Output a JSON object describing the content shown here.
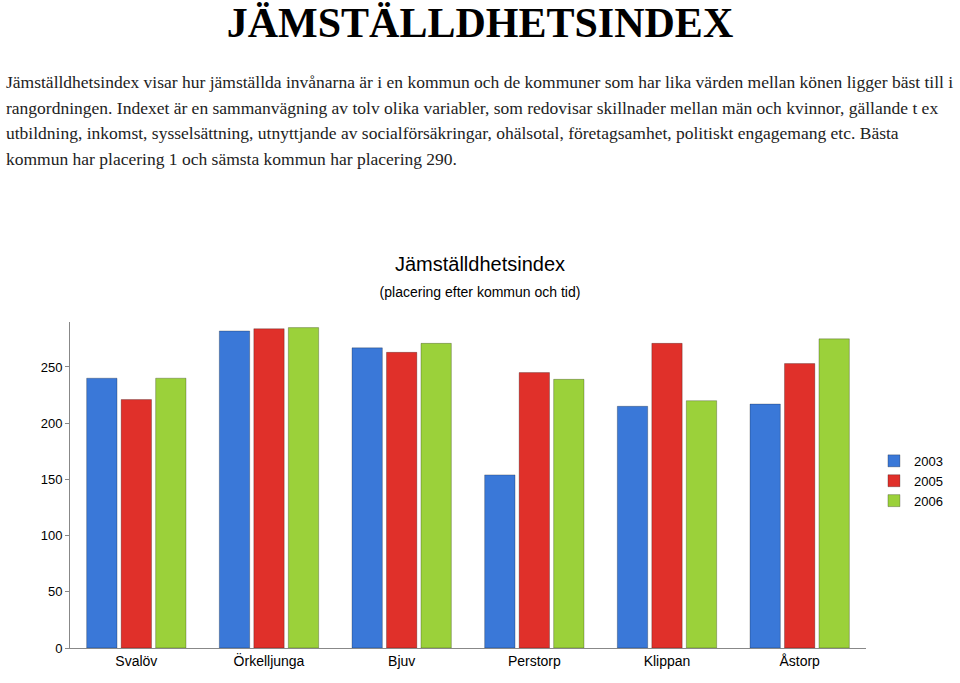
{
  "document": {
    "title": "JÄMSTÄLLDHETSINDEX",
    "paragraph": "Jämställdhetsindex visar hur jämställda invånarna är i en kommun och de kommuner som har lika värden mellan könen ligger bäst till i rangordningen. Indexet är en sammanvägning av tolv olika variabler, som redovisar skillnader mellan män och kvinnor, gällande t ex utbildning, inkomst, sysselsättning, utnyttjande av socialförsäkringar, ohälsotal, företagsamhet, politiskt engagemang etc. Bästa kommun har placering 1 och sämsta kommun har placering 290."
  },
  "chart_data": {
    "type": "bar",
    "title": "Jämställdhetsindex",
    "subtitle": "(placering efter kommun och tid)",
    "categories": [
      "Svalöv",
      "Örkelljunga",
      "Bjuv",
      "Perstorp",
      "Klippan",
      "Åstorp"
    ],
    "series": [
      {
        "name": "2003",
        "color": "#3a78d8",
        "values": [
          240,
          282,
          267,
          154,
          215,
          217
        ]
      },
      {
        "name": "2005",
        "color": "#e0302a",
        "values": [
          221,
          284,
          263,
          245,
          271,
          253
        ]
      },
      {
        "name": "2006",
        "color": "#9bd13a",
        "values": [
          240,
          285,
          271,
          239,
          220,
          275
        ]
      }
    ],
    "ylim": [
      0,
      290
    ],
    "yticks": [
      0,
      50,
      100,
      150,
      200,
      250
    ],
    "grid": false,
    "legend": "right"
  }
}
